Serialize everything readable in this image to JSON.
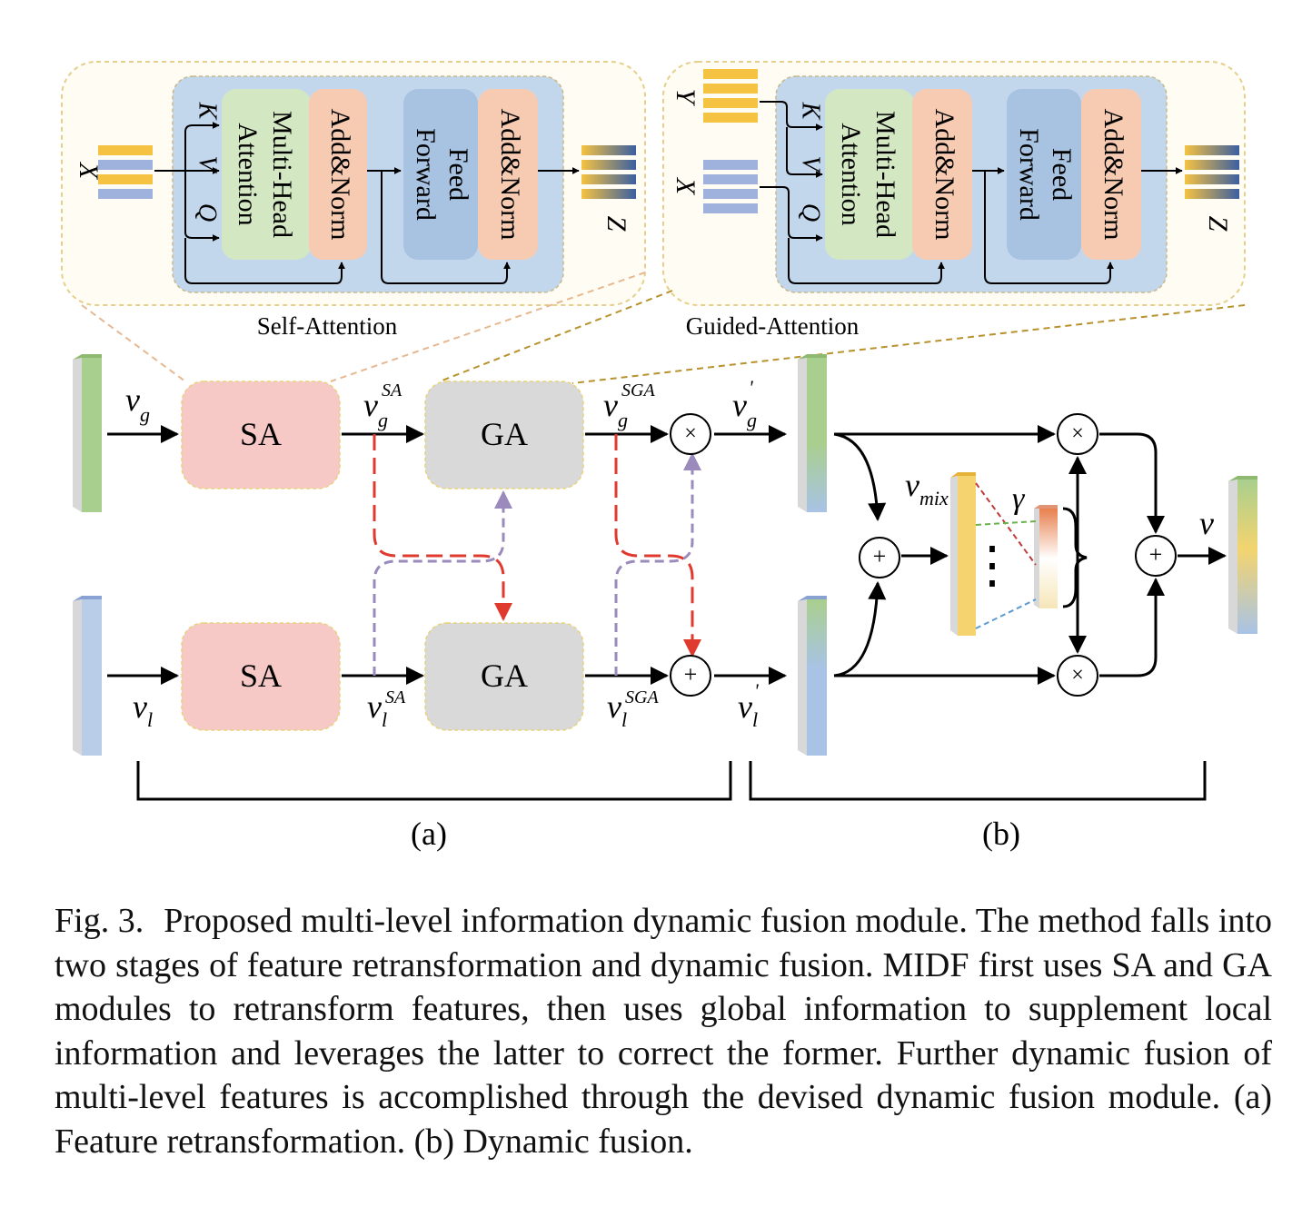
{
  "figure": {
    "self_attention": {
      "caption": "Self-Attention",
      "input": "X",
      "output": "Z",
      "k": "K",
      "v": "V",
      "q": "Q",
      "mha": [
        "Multi-Head",
        "Attention"
      ],
      "addnorm": "Add&Norm",
      "ff": [
        "Feed",
        "Forward"
      ]
    },
    "guided_attention": {
      "caption": "Guided-Attention",
      "input_y": "Y",
      "input_x": "X",
      "output": "Z",
      "k": "K",
      "v": "V",
      "q": "Q",
      "mha": [
        "Multi-Head",
        "Attention"
      ],
      "addnorm": "Add&Norm",
      "ff": [
        "Feed",
        "Forward"
      ]
    },
    "blocks": {
      "sa": "SA",
      "ga": "GA"
    },
    "symbols": {
      "times": "×",
      "plus": "+",
      "dots": "⋮"
    },
    "labels": {
      "vg": {
        "base": "v",
        "sub": "g"
      },
      "vl": {
        "base": "v",
        "sub": "l"
      },
      "vg_sa": {
        "base": "v",
        "sub": "g",
        "sup": "SA"
      },
      "vl_sa": {
        "base": "v",
        "sub": "l",
        "sup": "SA"
      },
      "vg_sga": {
        "base": "v",
        "sub": "g",
        "sup": "SGA"
      },
      "vl_sga": {
        "base": "v",
        "sub": "l",
        "sup": "SGA"
      },
      "vg_prime": {
        "base": "v",
        "sub": "g",
        "sup": "'"
      },
      "vl_prime": {
        "base": "v",
        "sub": "l",
        "sup": "'"
      },
      "vmix": {
        "base": "v",
        "sub": "mix"
      },
      "gamma": "γ",
      "v_out": "v"
    },
    "panels": {
      "a": "(a)",
      "b": "(b)"
    },
    "colors": {
      "attention_bg": "#c3d7ec",
      "mha": "#d3e7c3",
      "addnorm": "#f6cbb2",
      "feed_forward": "#a8c3e2",
      "sa_block": "#f6c9c7",
      "ga_block": "#d9d9d9",
      "red_dash": "#e03a2f",
      "purple_dash": "#9b8bbd",
      "arrow": "#000000"
    }
  },
  "caption": {
    "label": "Fig. 3.",
    "text": "Proposed multi-level information dynamic fusion module. The method falls into two stages of feature retransformation and dynamic fusion. MIDF first uses SA and GA modules to retransform features, then uses global information to supplement local information and leverages the latter to correct the former. Further dynamic fusion of multi-level features is accomplished through the devised dynamic fusion module. (a) Feature retransformation. (b) Dynamic fusion."
  }
}
